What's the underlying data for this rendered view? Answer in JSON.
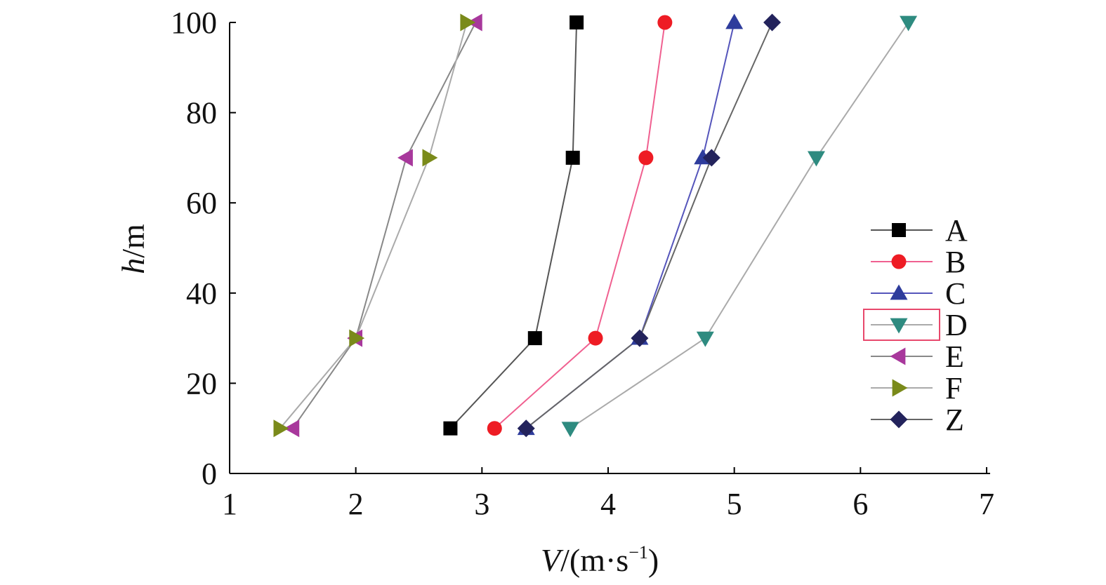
{
  "chart_data": {
    "type": "line",
    "xlabel_main": "V",
    "xlabel_unit_prefix": "/(m·s",
    "xlabel_exp": "−1",
    "xlabel_unit_suffix": ")",
    "ylabel_main": "h",
    "ylabel_unit": "/m",
    "xlim": [
      1,
      7
    ],
    "ylim": [
      0,
      100
    ],
    "xticks": [
      1,
      2,
      3,
      4,
      5,
      6,
      7
    ],
    "yticks": [
      0,
      20,
      40,
      60,
      80,
      100
    ],
    "legend_position": "right",
    "series": [
      {
        "name": "A",
        "marker": "square",
        "color": "#000000",
        "line": "#555555",
        "points": [
          [
            2.75,
            10
          ],
          [
            3.42,
            30
          ],
          [
            3.72,
            70
          ],
          [
            3.75,
            100
          ]
        ]
      },
      {
        "name": "B",
        "marker": "circle",
        "color": "#ee1c24",
        "line": "#f06090",
        "points": [
          [
            3.1,
            10
          ],
          [
            3.9,
            30
          ],
          [
            4.3,
            70
          ],
          [
            4.45,
            100
          ]
        ]
      },
      {
        "name": "C",
        "marker": "triangle-up",
        "color": "#2e3c9c",
        "line": "#5555bb",
        "points": [
          [
            3.35,
            10
          ],
          [
            4.25,
            30
          ],
          [
            4.75,
            70
          ],
          [
            5.0,
            100
          ]
        ]
      },
      {
        "name": "D",
        "marker": "triangle-down",
        "color": "#2e8b80",
        "line": "#aaaaaa",
        "points": [
          [
            3.7,
            10
          ],
          [
            4.77,
            30
          ],
          [
            5.65,
            70
          ],
          [
            6.38,
            100
          ]
        ]
      },
      {
        "name": "E",
        "marker": "triangle-left",
        "color": "#a8389c",
        "line": "#888888",
        "points": [
          [
            1.5,
            10
          ],
          [
            2.0,
            30
          ],
          [
            2.4,
            70
          ],
          [
            2.95,
            100
          ]
        ]
      },
      {
        "name": "F",
        "marker": "triangle-right",
        "color": "#7a8a1a",
        "line": "#aaaaaa",
        "points": [
          [
            1.4,
            10
          ],
          [
            2.0,
            30
          ],
          [
            2.58,
            70
          ],
          [
            2.88,
            100
          ]
        ]
      },
      {
        "name": "Z",
        "marker": "diamond",
        "color": "#23235c",
        "line": "#666666",
        "points": [
          [
            3.35,
            10
          ],
          [
            4.25,
            30
          ],
          [
            4.82,
            70
          ],
          [
            5.3,
            100
          ]
        ]
      }
    ],
    "highlighted_legend_entry": "D",
    "highlight_color": "#e8486c"
  }
}
